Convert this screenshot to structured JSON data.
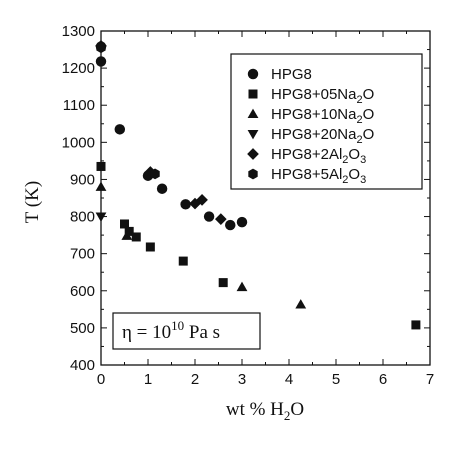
{
  "chart_data": {
    "type": "scatter",
    "xlabel": {
      "pre": "wt % H",
      "sub": "2",
      "post": "O"
    },
    "ylabel": "T (K)",
    "xlim": [
      0,
      7
    ],
    "ylim": [
      400,
      1300
    ],
    "xticks": [
      0,
      1,
      2,
      3,
      4,
      5,
      6,
      7
    ],
    "yticks": [
      400,
      500,
      600,
      700,
      800,
      900,
      1000,
      1100,
      1200,
      1300
    ],
    "grid": false,
    "legend_position": "top-right",
    "series": [
      {
        "name": "HPG8",
        "legend": {
          "base": "HPG8",
          "sub": "",
          "post": ""
        },
        "marker": "circle",
        "points": [
          [
            0.0,
            1218
          ],
          [
            0.0,
            1258
          ],
          [
            0.4,
            1035
          ],
          [
            1.0,
            910
          ],
          [
            1.3,
            875
          ],
          [
            1.8,
            833
          ],
          [
            2.3,
            800
          ],
          [
            2.75,
            777
          ],
          [
            3.0,
            785
          ]
        ]
      },
      {
        "name": "HPG8+05Na2O",
        "legend": {
          "base": "HPG8+05Na",
          "sub": "2",
          "post": "O"
        },
        "marker": "square",
        "points": [
          [
            0.0,
            935
          ],
          [
            0.5,
            780
          ],
          [
            0.6,
            760
          ],
          [
            0.75,
            745
          ],
          [
            1.05,
            718
          ],
          [
            1.75,
            680
          ],
          [
            2.6,
            622
          ],
          [
            6.7,
            508
          ]
        ]
      },
      {
        "name": "HPG8+10Na2O",
        "legend": {
          "base": "HPG8+10Na",
          "sub": "2",
          "post": "O"
        },
        "marker": "triangle-up",
        "points": [
          [
            0.0,
            880
          ],
          [
            0.55,
            748
          ],
          [
            3.0,
            610
          ],
          [
            4.25,
            563
          ]
        ]
      },
      {
        "name": "HPG8+20Na2O",
        "legend": {
          "base": "HPG8+20Na",
          "sub": "2",
          "post": "O"
        },
        "marker": "triangle-down",
        "points": [
          [
            0.0,
            800
          ]
        ]
      },
      {
        "name": "HPG8+2Al2O3",
        "legend": {
          "base": "HPG8+2Al",
          "sub": "2",
          "post": "O",
          "sub2": "3"
        },
        "marker": "diamond",
        "points": [
          [
            0.0,
            1260
          ],
          [
            1.05,
            920
          ],
          [
            2.0,
            835
          ],
          [
            2.15,
            845
          ],
          [
            2.55,
            793
          ]
        ]
      },
      {
        "name": "HPG8+5Al2O3",
        "legend": {
          "base": "HPG8+5Al",
          "sub": "2",
          "post": "O",
          "sub2": "3"
        },
        "marker": "hexagon",
        "points": [
          [
            0.0,
            1255
          ],
          [
            1.15,
            915
          ]
        ]
      }
    ],
    "annotation": {
      "symbol": "η = 10",
      "exponent": "10",
      "unit": " Pa s"
    }
  }
}
